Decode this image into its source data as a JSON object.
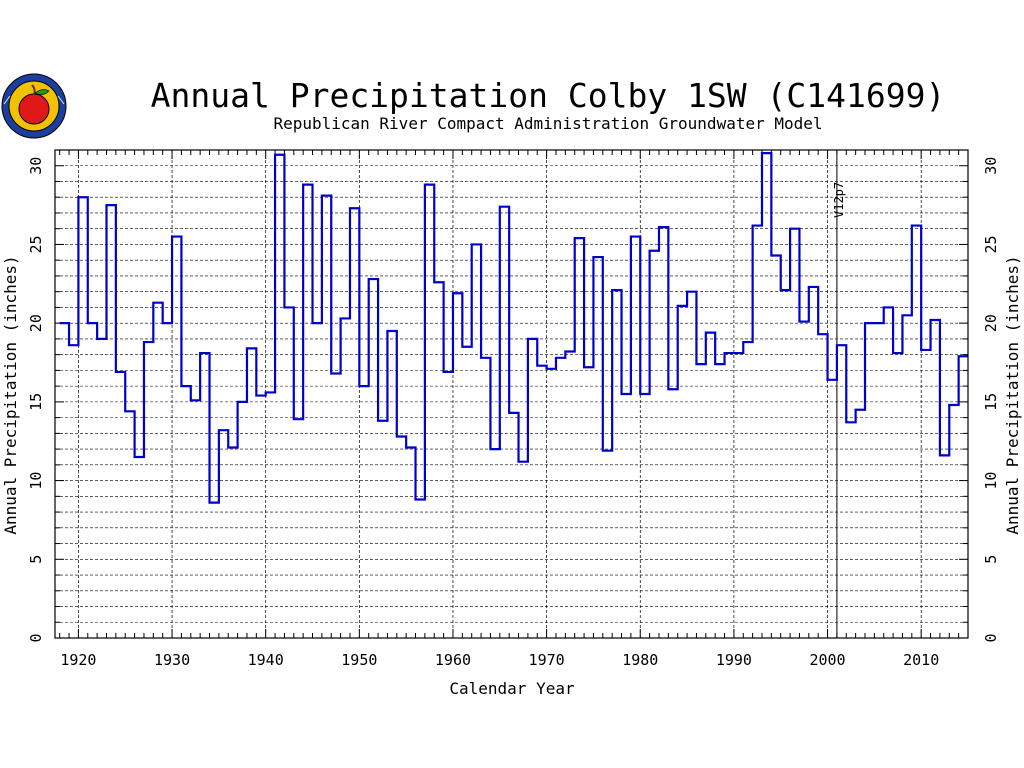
{
  "chart_data": {
    "type": "line",
    "title": "Annual Precipitation Colby 1SW (C141699)",
    "subtitle": "Republican River Compact Administration Groundwater Model",
    "xlabel": "Calendar Year",
    "ylabel": "Annual Precipitation (inches)",
    "xlim": [
      1917.5,
      2015
    ],
    "ylim": [
      0,
      31
    ],
    "x_ticks": [
      1920,
      1930,
      1940,
      1950,
      1960,
      1970,
      1980,
      1990,
      2000,
      2010
    ],
    "x_tick_labels": [
      "1920",
      "1930",
      "1940",
      "1950",
      "1960",
      "1970",
      "1980",
      "1990",
      "2000",
      "2010"
    ],
    "y_ticks": [
      0,
      5,
      10,
      15,
      20,
      25,
      30
    ],
    "y_tick_labels": [
      "0",
      "5",
      "10",
      "15",
      "20",
      "25",
      "30"
    ],
    "grid": true,
    "annotation": {
      "text": "V12p7",
      "x": 2001
    },
    "series": [
      {
        "style": "step",
        "color": "#0000cc",
        "start_year": 1918,
        "values": [
          20.0,
          18.6,
          28.0,
          20.0,
          19.0,
          27.5,
          16.9,
          14.4,
          11.5,
          18.8,
          21.3,
          20.0,
          25.5,
          16.0,
          15.1,
          18.1,
          8.6,
          13.2,
          12.1,
          15.0,
          18.4,
          15.4,
          15.6,
          30.7,
          21.0,
          13.9,
          28.8,
          20.0,
          28.1,
          16.8,
          20.3,
          27.3,
          16.0,
          22.8,
          13.8,
          19.5,
          12.8,
          12.1,
          8.8,
          28.8,
          22.6,
          16.9,
          21.9,
          18.5,
          25.0,
          17.8,
          12.0,
          27.4,
          14.3,
          11.2,
          19.0,
          17.3,
          17.1,
          17.8,
          18.2,
          25.4,
          17.2,
          24.2,
          11.9,
          22.1,
          15.5,
          25.5,
          15.5,
          24.6,
          26.1,
          15.8,
          21.1,
          22.0,
          17.4,
          19.4,
          17.4,
          18.1,
          18.1,
          18.8,
          26.2,
          30.8,
          24.3,
          22.1,
          26.0,
          20.1,
          22.3,
          19.3,
          16.4,
          18.6,
          13.7,
          14.5,
          20.0,
          20.0,
          21.0,
          18.1,
          20.5,
          26.2,
          18.3,
          20.2,
          11.6,
          14.8,
          17.9
        ]
      }
    ]
  }
}
